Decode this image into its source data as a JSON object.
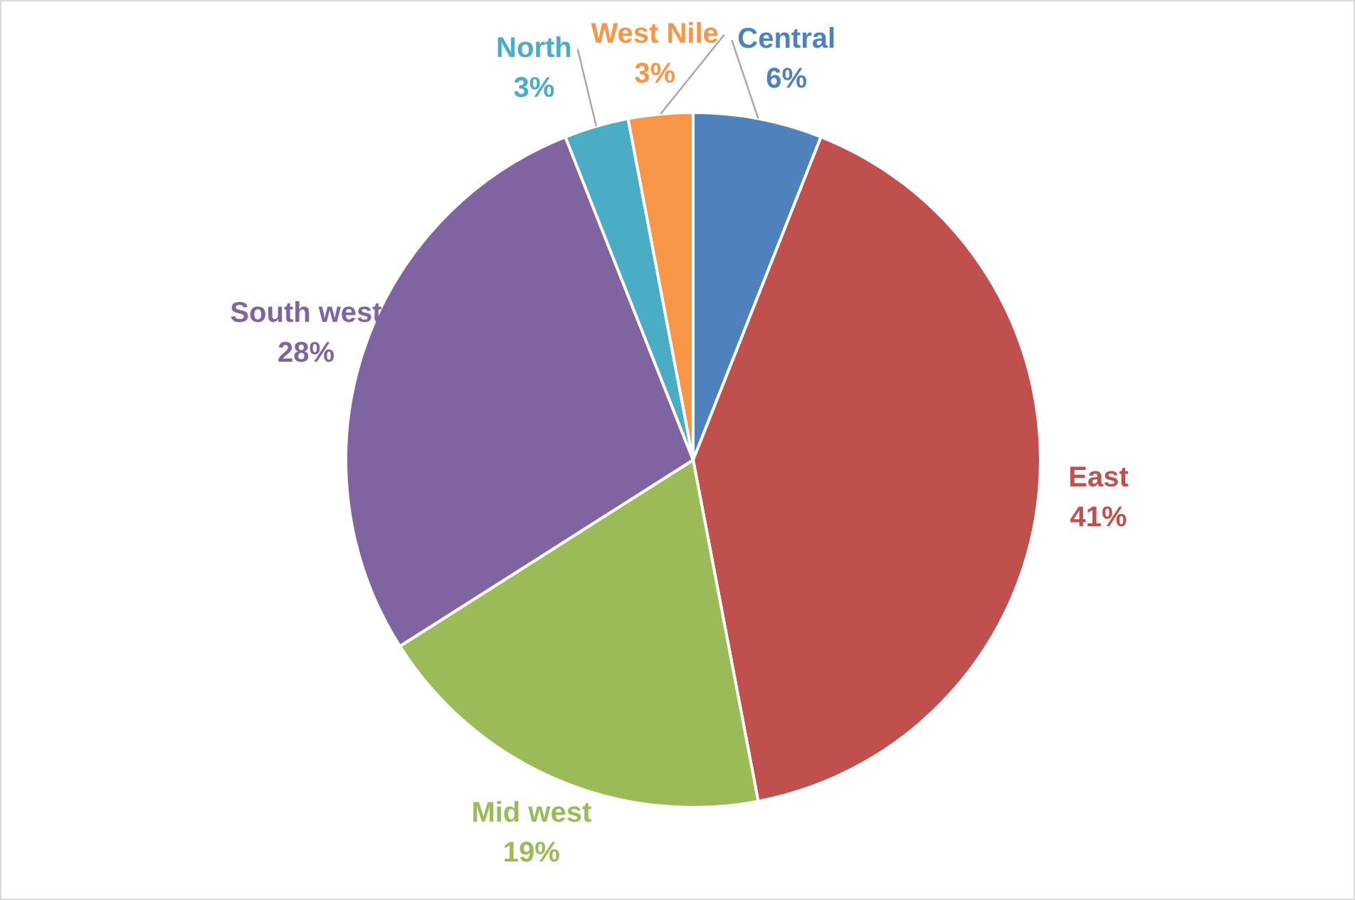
{
  "chart_data": {
    "type": "pie",
    "categories": [
      "Central",
      "East",
      "Mid west",
      "South west",
      "North",
      "West Nile"
    ],
    "values": [
      6,
      41,
      19,
      28,
      3,
      3
    ],
    "value_labels": [
      "6%",
      "41%",
      "19%",
      "28%",
      "3%",
      "3%"
    ],
    "colors": [
      "#4f81bd",
      "#c0504d",
      "#9bbb59",
      "#8064a2",
      "#4bacc6",
      "#f79646"
    ],
    "legend": false
  }
}
